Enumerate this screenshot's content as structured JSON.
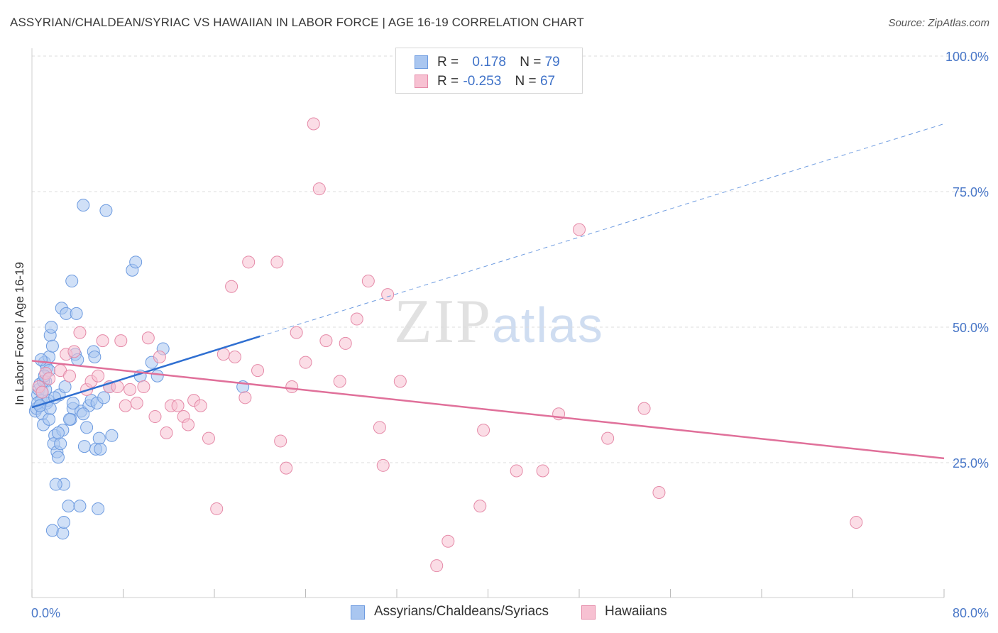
{
  "title": "ASSYRIAN/CHALDEAN/SYRIAC VS HAWAIIAN IN LABOR FORCE | AGE 16-19 CORRELATION CHART",
  "source": "Source: ZipAtlas.com",
  "watermark": {
    "zip": "ZIP",
    "atlas": "atlas"
  },
  "stats": [
    {
      "r_label": "R =",
      "r_value": "0.178",
      "n_label": "N =",
      "n_value": "79",
      "color": "#a9c6f0",
      "border": "#6d9be0"
    },
    {
      "r_label": "R =",
      "r_value": "-0.253",
      "n_label": "N =",
      "n_value": "67",
      "color": "#f7c1d2",
      "border": "#e58aa8"
    }
  ],
  "legend": [
    {
      "label": "Assyrians/Chaldeans/Syriacs",
      "color": "#a9c6f0",
      "border": "#6d9be0"
    },
    {
      "label": "Hawaiians",
      "color": "#f7c1d2",
      "border": "#e58aa8"
    }
  ],
  "chart_data": {
    "type": "scatter",
    "title": "ASSYRIAN/CHALDEAN/SYRIAC VS HAWAIIAN IN LABOR FORCE | AGE 16-19 CORRELATION CHART",
    "xlabel": "",
    "ylabel": "In Labor Force | Age 16-19",
    "xlim": [
      0,
      80
    ],
    "ylim": [
      0,
      100
    ],
    "x_tick_labels": [
      "0.0%",
      "80.0%"
    ],
    "y_ticks": [
      25,
      50,
      75,
      100
    ],
    "y_tick_labels": [
      "25.0%",
      "50.0%",
      "75.0%",
      "100.0%"
    ],
    "grid": true,
    "series": [
      {
        "name": "Assyrians/Chaldeans/Syriacs",
        "color": "#6d9be0",
        "fill": "#a9c6f0",
        "trend": {
          "x": [
            0,
            20
          ],
          "y": [
            35.2,
            48.3
          ],
          "extended_to": [
            80,
            87.5
          ],
          "color": "#2f6fd1"
        },
        "points": [
          [
            0.3,
            34.5
          ],
          [
            0.4,
            35.0
          ],
          [
            0.5,
            37.5
          ],
          [
            0.6,
            38.5
          ],
          [
            0.7,
            39.5
          ],
          [
            0.8,
            36.5
          ],
          [
            0.9,
            34.0
          ],
          [
            1.0,
            32.0
          ],
          [
            1.1,
            43.5
          ],
          [
            1.2,
            40.0
          ],
          [
            1.3,
            42.5
          ],
          [
            1.4,
            36.5
          ],
          [
            1.5,
            44.5
          ],
          [
            1.6,
            48.5
          ],
          [
            1.7,
            50.0
          ],
          [
            1.8,
            46.5
          ],
          [
            1.5,
            42.0
          ],
          [
            1.2,
            38.5
          ],
          [
            2.0,
            30.0
          ],
          [
            1.9,
            28.5
          ],
          [
            2.2,
            27.0
          ],
          [
            2.3,
            26.0
          ],
          [
            2.4,
            37.5
          ],
          [
            2.5,
            28.5
          ],
          [
            2.7,
            31.0
          ],
          [
            2.6,
            53.5
          ],
          [
            2.8,
            21.0
          ],
          [
            2.1,
            21.0
          ],
          [
            3.0,
            52.5
          ],
          [
            3.2,
            17.0
          ],
          [
            3.5,
            58.5
          ],
          [
            3.4,
            33.0
          ],
          [
            3.6,
            35.0
          ],
          [
            3.8,
            45.0
          ],
          [
            3.9,
            52.5
          ],
          [
            4.0,
            44.0
          ],
          [
            4.2,
            17.0
          ],
          [
            4.3,
            34.5
          ],
          [
            4.5,
            72.5
          ],
          [
            4.6,
            28.0
          ],
          [
            5.0,
            35.5
          ],
          [
            5.2,
            36.5
          ],
          [
            5.4,
            45.5
          ],
          [
            5.5,
            44.5
          ],
          [
            5.6,
            27.5
          ],
          [
            5.7,
            36.0
          ],
          [
            5.8,
            16.5
          ],
          [
            5.9,
            29.5
          ],
          [
            6.0,
            27.5
          ],
          [
            6.3,
            37.0
          ],
          [
            6.5,
            71.5
          ],
          [
            6.8,
            39.0
          ],
          [
            7.0,
            30.0
          ],
          [
            8.8,
            60.5
          ],
          [
            9.1,
            62.0
          ],
          [
            9.5,
            41.0
          ],
          [
            10.5,
            43.5
          ],
          [
            11.0,
            41.0
          ],
          [
            11.5,
            46.0
          ],
          [
            18.5,
            39.0
          ],
          [
            1.8,
            12.5
          ],
          [
            2.7,
            12.0
          ],
          [
            2.8,
            14.0
          ],
          [
            1.5,
            33.0
          ],
          [
            0.8,
            44.0
          ],
          [
            1.0,
            40.0
          ],
          [
            1.3,
            36.0
          ],
          [
            2.3,
            30.5
          ],
          [
            3.3,
            33.0
          ],
          [
            4.5,
            34.0
          ],
          [
            0.9,
            38.0
          ],
          [
            1.6,
            35.0
          ],
          [
            2.0,
            37.0
          ],
          [
            3.6,
            36.0
          ],
          [
            4.8,
            31.5
          ],
          [
            0.5,
            36.0
          ],
          [
            1.1,
            41.0
          ],
          [
            2.9,
            39.0
          ],
          [
            0.7,
            35.5
          ]
        ]
      },
      {
        "name": "Hawaiians",
        "color": "#e58aa8",
        "fill": "#f7c1d2",
        "trend": {
          "x": [
            0,
            80
          ],
          "y": [
            43.8,
            25.8
          ],
          "color": "#e0709a"
        },
        "points": [
          [
            0.6,
            39.0
          ],
          [
            0.9,
            38.0
          ],
          [
            1.2,
            41.5
          ],
          [
            1.5,
            40.5
          ],
          [
            2.5,
            42.0
          ],
          [
            3.0,
            45.0
          ],
          [
            3.3,
            41.0
          ],
          [
            3.7,
            45.5
          ],
          [
            4.2,
            49.0
          ],
          [
            4.8,
            38.5
          ],
          [
            5.2,
            40.0
          ],
          [
            5.8,
            41.0
          ],
          [
            6.2,
            47.5
          ],
          [
            6.8,
            39.0
          ],
          [
            7.5,
            39.0
          ],
          [
            7.8,
            47.5
          ],
          [
            8.2,
            35.5
          ],
          [
            8.6,
            38.5
          ],
          [
            9.2,
            36.0
          ],
          [
            9.8,
            39.0
          ],
          [
            10.2,
            48.0
          ],
          [
            10.8,
            33.5
          ],
          [
            11.2,
            44.5
          ],
          [
            11.8,
            30.5
          ],
          [
            12.2,
            35.5
          ],
          [
            12.8,
            35.5
          ],
          [
            13.3,
            33.5
          ],
          [
            13.7,
            32.0
          ],
          [
            14.2,
            36.5
          ],
          [
            14.8,
            35.5
          ],
          [
            15.5,
            29.5
          ],
          [
            16.2,
            16.5
          ],
          [
            16.8,
            45.0
          ],
          [
            17.5,
            57.5
          ],
          [
            17.8,
            44.5
          ],
          [
            18.7,
            37.0
          ],
          [
            19.0,
            62.0
          ],
          [
            19.8,
            42.0
          ],
          [
            21.5,
            62.0
          ],
          [
            21.8,
            29.0
          ],
          [
            22.3,
            24.0
          ],
          [
            22.8,
            39.0
          ],
          [
            23.2,
            49.0
          ],
          [
            24.0,
            43.5
          ],
          [
            24.7,
            87.5
          ],
          [
            25.2,
            75.5
          ],
          [
            25.8,
            47.5
          ],
          [
            27.0,
            40.0
          ],
          [
            27.5,
            47.0
          ],
          [
            28.5,
            51.5
          ],
          [
            29.5,
            58.5
          ],
          [
            30.5,
            31.5
          ],
          [
            30.8,
            24.5
          ],
          [
            31.2,
            56.0
          ],
          [
            32.3,
            40.0
          ],
          [
            35.5,
            6.0
          ],
          [
            36.5,
            10.5
          ],
          [
            39.3,
            17.0
          ],
          [
            39.6,
            31.0
          ],
          [
            42.5,
            23.5
          ],
          [
            44.8,
            23.5
          ],
          [
            46.2,
            34.0
          ],
          [
            48.0,
            68.0
          ],
          [
            50.5,
            29.5
          ],
          [
            53.7,
            35.0
          ],
          [
            55.0,
            19.5
          ],
          [
            72.3,
            14.0
          ]
        ]
      }
    ]
  }
}
